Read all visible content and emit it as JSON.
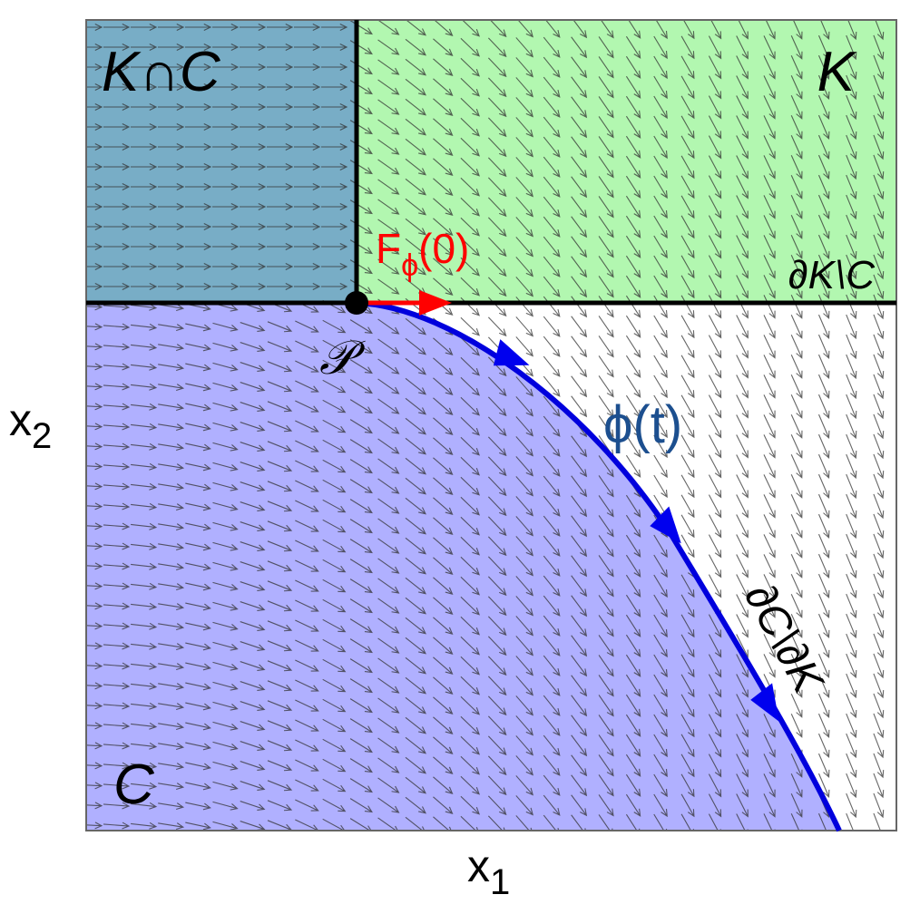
{
  "regions": {
    "k_and_c": "K∩C",
    "k": "K",
    "k_boundary_minus_c": "∂K\\C",
    "c": "C",
    "c_boundary_minus_k": "∂C\\∂K"
  },
  "point": "𝒫",
  "initial_velocity": {
    "name": "F",
    "subscript": "ϕ",
    "argument": "(0)"
  },
  "trajectory": "ϕ(t)",
  "axes": {
    "x": {
      "name": "x",
      "subscript": "1"
    },
    "y": {
      "name": "x",
      "subscript": "2"
    }
  }
}
